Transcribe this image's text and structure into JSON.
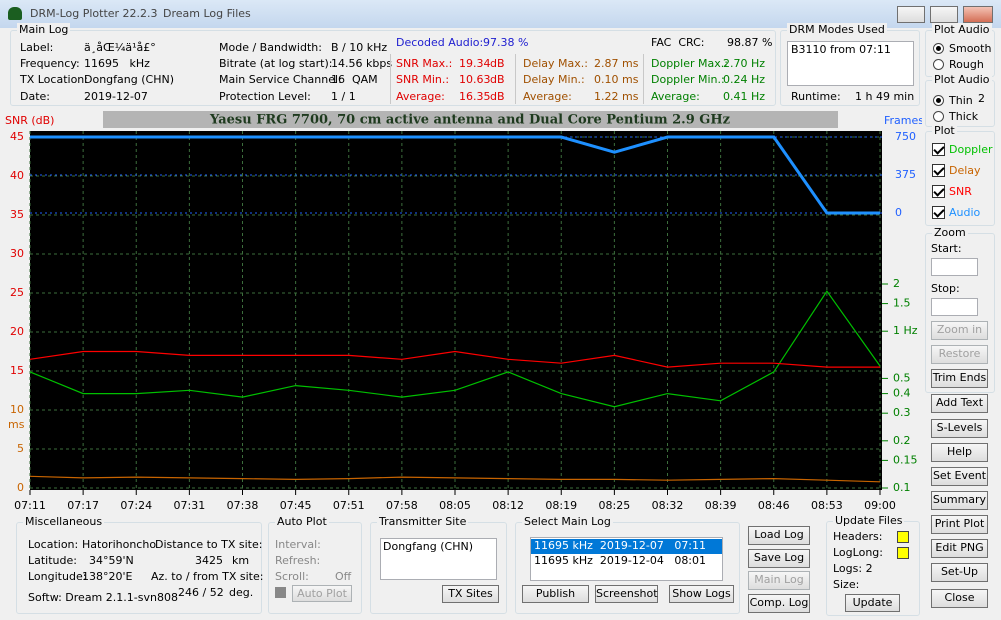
{
  "window": {
    "title": "DRM-Log Plotter 22.2.3",
    "subtitle": "Dream Log Files"
  },
  "main_log": {
    "title": "Main Log",
    "station": [
      {
        "label": "Label:",
        "value": "ä¸­åŒ¼ä¹å£°"
      },
      {
        "label": "Frequency:",
        "value": "11695   kHz"
      },
      {
        "label": "TX Location:",
        "value": "Dongfang (CHN)"
      },
      {
        "label": "Date:",
        "value": "2019-12-07"
      }
    ],
    "signal": [
      {
        "label": "Mode / Bandwidth:",
        "value": "B / 10 kHz"
      },
      {
        "label": "Bitrate (at log start):",
        "value": "14.56 kbps"
      },
      {
        "label": "Main Service Channel:",
        "value": "16  QAM"
      },
      {
        "label": "Protection Level:",
        "value": "1 / 1"
      }
    ],
    "decoded_audio": {
      "label": "Decoded Audio:",
      "value": "97.38 %"
    },
    "fac_crc": {
      "label": "FAC  CRC:",
      "value": "98.87 %"
    },
    "snr": [
      {
        "label": "SNR Max.:",
        "value": "19.34",
        "unit": "dB"
      },
      {
        "label": "SNR Min.:",
        "value": "10.63",
        "unit": "dB"
      },
      {
        "label": "Average:",
        "value": "16.35",
        "unit": "dB"
      }
    ],
    "delay": [
      {
        "label": "Delay Max.:",
        "value": "2.87",
        "unit": "ms"
      },
      {
        "label": "Delay Min.:",
        "value": "0.10",
        "unit": "ms"
      },
      {
        "label": "Average:",
        "value": "1.22",
        "unit": "ms"
      }
    ],
    "doppler": [
      {
        "label": "Doppler Max.:",
        "value": "2.70 Hz"
      },
      {
        "label": "Doppler Min.:",
        "value": "0.24 Hz"
      },
      {
        "label": "Average:",
        "value": "0.41 Hz"
      }
    ]
  },
  "drm_modes": {
    "title": "DRM Modes Used",
    "items": [
      "B3110 from 07:11"
    ],
    "runtime_label": "Runtime:",
    "runtime": "1 h 49 min"
  },
  "plot_audio": {
    "title": "Plot Audio",
    "options": [
      {
        "label": "Smooth",
        "selected": true
      },
      {
        "label": "Rough",
        "selected": false
      }
    ]
  },
  "plot_width": {
    "title": "Plot Audio",
    "options": [
      {
        "label": "Thin",
        "selected": true
      },
      {
        "label": "Thick",
        "selected": false
      }
    ],
    "value": "2"
  },
  "plot_select": {
    "title": "Plot"
  },
  "zoom": {
    "title": "Zoom",
    "start_label": "Start:",
    "stop_label": "Stop:",
    "buttons": [
      {
        "label": "Zoom in",
        "enabled": false
      },
      {
        "label": "Restore",
        "enabled": false
      },
      {
        "label": "Trim Ends",
        "enabled": true
      }
    ]
  },
  "side_buttons": [
    "Add Text",
    "S-Levels",
    "Help",
    "Set Event",
    "Summary",
    "Print Plot",
    "Edit PNG",
    "Set-Up",
    "Close"
  ],
  "chart_data": {
    "type": "line",
    "title": "Yaesu FRG 7700, 70 cm active antenna and Dual Core Pentium 2.9 GHz",
    "x": [
      "07:11",
      "07:17",
      "07:24",
      "07:31",
      "07:38",
      "07:45",
      "07:51",
      "07:58",
      "08:05",
      "08:12",
      "08:19",
      "08:25",
      "08:32",
      "08:39",
      "08:46",
      "08:53",
      "09:00"
    ],
    "y_label": "SNR (dB)",
    "ylim": [
      0,
      45
    ],
    "yticks": [
      15,
      20,
      25,
      30,
      35,
      40,
      45
    ],
    "ms_label": "ms",
    "ms_lim": [
      0,
      45
    ],
    "ms_ticks": [
      0,
      5,
      10
    ],
    "frames_label": "Frames",
    "frames_lim": [
      0,
      750
    ],
    "frames_ticks": [
      0,
      375,
      750
    ],
    "hz_lim": [
      0.1,
      2
    ],
    "hz_log": true,
    "hz_ticks": [
      0.1,
      0.15,
      0.2,
      0.3,
      0.4,
      0.5,
      {
        "value": 1,
        "label": "1 Hz"
      },
      1.5,
      2
    ],
    "grid": true,
    "series": [
      {
        "name": "Doppler",
        "color": "#00c000",
        "axis": "hz",
        "checked": true,
        "values": [
          0.55,
          0.4,
          0.4,
          0.42,
          0.38,
          0.45,
          0.42,
          0.38,
          0.42,
          0.55,
          0.4,
          0.33,
          0.4,
          0.36,
          0.55,
          1.8,
          0.6
        ]
      },
      {
        "name": "Delay",
        "color": "#c86400",
        "axis": "ms",
        "checked": true,
        "values": [
          1.5,
          1.3,
          1.4,
          1.3,
          1.2,
          1.1,
          1.2,
          1.4,
          1.3,
          1.2,
          1.1,
          1.1,
          1.0,
          1.1,
          1.2,
          1.0,
          0.8
        ]
      },
      {
        "name": "SNR",
        "color": "#ff0000",
        "axis": "y",
        "checked": true,
        "values": [
          16.5,
          17.5,
          17.5,
          17,
          17,
          17,
          17,
          16.5,
          17.5,
          16.5,
          16,
          17,
          15.5,
          16,
          16,
          15.5,
          15.5
        ]
      },
      {
        "name": "Audio",
        "color": "#1e90ff",
        "axis": "frames",
        "checked": true,
        "values": [
          750,
          750,
          750,
          750,
          750,
          750,
          750,
          750,
          750,
          750,
          750,
          600,
          750,
          750,
          750,
          0,
          0
        ]
      }
    ]
  },
  "misc": {
    "title": "Miscellaneous",
    "location_label": "Location:",
    "location": "Hatorihoncho",
    "latitude_label": "Latitude:",
    "latitude": "34°59'N",
    "longitude_label": "Longitude:",
    "longitude": "138°20'E",
    "distance_label": "Distance to TX site:",
    "distance": "3425",
    "distance_unit": "km",
    "azimuth_label": "Az. to / from TX site:",
    "azimuth": "246 / 52",
    "azimuth_unit": "deg.",
    "software": "Softw: Dream 2.1.1-svn808"
  },
  "auto_plot": {
    "title": "Auto Plot",
    "interval": "Interval:",
    "refresh": "Refresh:",
    "scroll": "Scroll:",
    "scroll_value": "Off",
    "button": "Auto Plot"
  },
  "transmitter": {
    "title": "Transmitter Site",
    "items": [
      "Dongfang (CHN)"
    ],
    "button": "TX Sites"
  },
  "select_log": {
    "title": "Select Main Log",
    "items": [
      {
        "text": "11695 kHz  2019-12-07   07:11",
        "selected": true
      },
      {
        "text": "11695 kHz  2019-12-04   08:01",
        "selected": false
      }
    ],
    "buttons": [
      "Publish",
      "Screenshot",
      "Show Logs"
    ]
  },
  "log_buttons": [
    {
      "label": "Load Log",
      "enabled": true
    },
    {
      "label": "Save Log",
      "enabled": true
    },
    {
      "label": "Main Log",
      "enabled": false
    },
    {
      "label": "Comp. Log",
      "enabled": true
    }
  ],
  "update_files": {
    "title": "Update Files",
    "headers": "Headers:",
    "loglong": "LogLong:",
    "logs": "Logs: 2",
    "size": "Size:",
    "button": "Update"
  }
}
